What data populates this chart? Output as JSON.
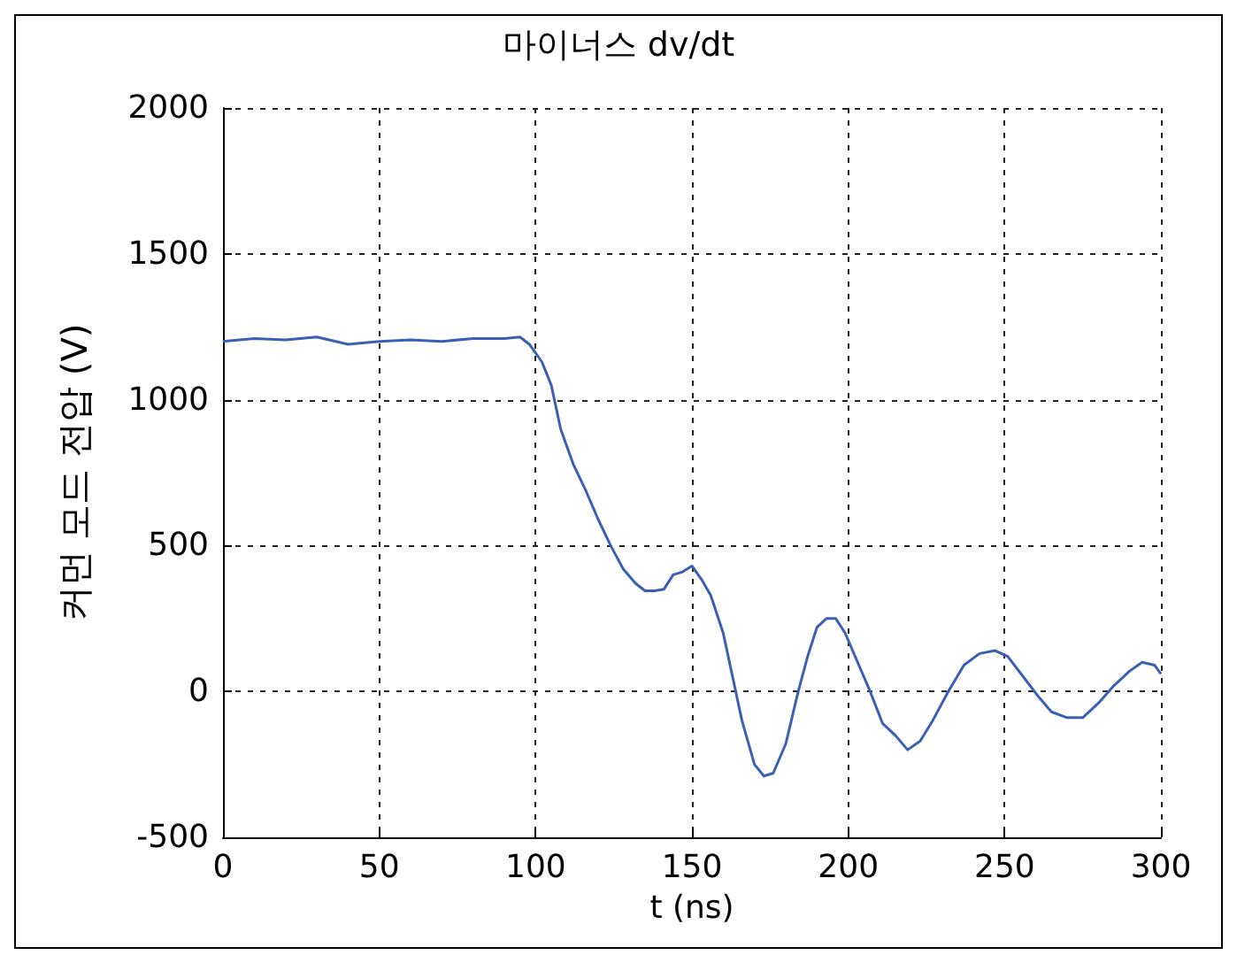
{
  "chart_data": {
    "type": "line",
    "title": "마이너스 dv/dt",
    "xlabel": "t (ns)",
    "ylabel": "커먼 모드 전압 (V)",
    "xlim": [
      0,
      300
    ],
    "xticks": [
      0,
      50,
      100,
      150,
      200,
      250,
      300
    ],
    "ylim": [
      -500,
      2000
    ],
    "yticks": [
      -500,
      0,
      500,
      1000,
      1500,
      2000
    ],
    "grid": true,
    "marker": "none",
    "line_style": "solid",
    "series": [
      {
        "color": "#3a5fb5",
        "x": [
          0,
          10,
          20,
          30,
          40,
          50,
          60,
          70,
          80,
          90,
          95,
          98,
          102,
          105,
          108,
          112,
          116,
          120,
          124,
          128,
          132,
          135,
          138,
          141,
          144,
          147,
          150,
          153,
          156,
          160,
          163,
          166,
          170,
          173,
          176,
          180,
          184,
          187,
          190,
          193,
          196,
          199,
          203,
          207,
          211,
          215,
          219,
          223,
          227,
          232,
          237,
          242,
          247,
          251,
          256,
          261,
          265,
          270,
          275,
          280,
          285,
          290,
          294,
          298,
          300
        ],
        "values": [
          1200,
          1210,
          1205,
          1215,
          1190,
          1200,
          1205,
          1200,
          1210,
          1210,
          1215,
          1190,
          1130,
          1050,
          900,
          780,
          690,
          590,
          500,
          420,
          370,
          345,
          345,
          350,
          400,
          410,
          430,
          385,
          330,
          200,
          50,
          -100,
          -250,
          -290,
          -280,
          -180,
          0,
          120,
          220,
          250,
          250,
          200,
          100,
          0,
          -110,
          -150,
          -200,
          -170,
          -100,
          0,
          90,
          130,
          140,
          120,
          50,
          -20,
          -70,
          -90,
          -90,
          -40,
          20,
          70,
          100,
          90,
          60
        ]
      }
    ]
  }
}
